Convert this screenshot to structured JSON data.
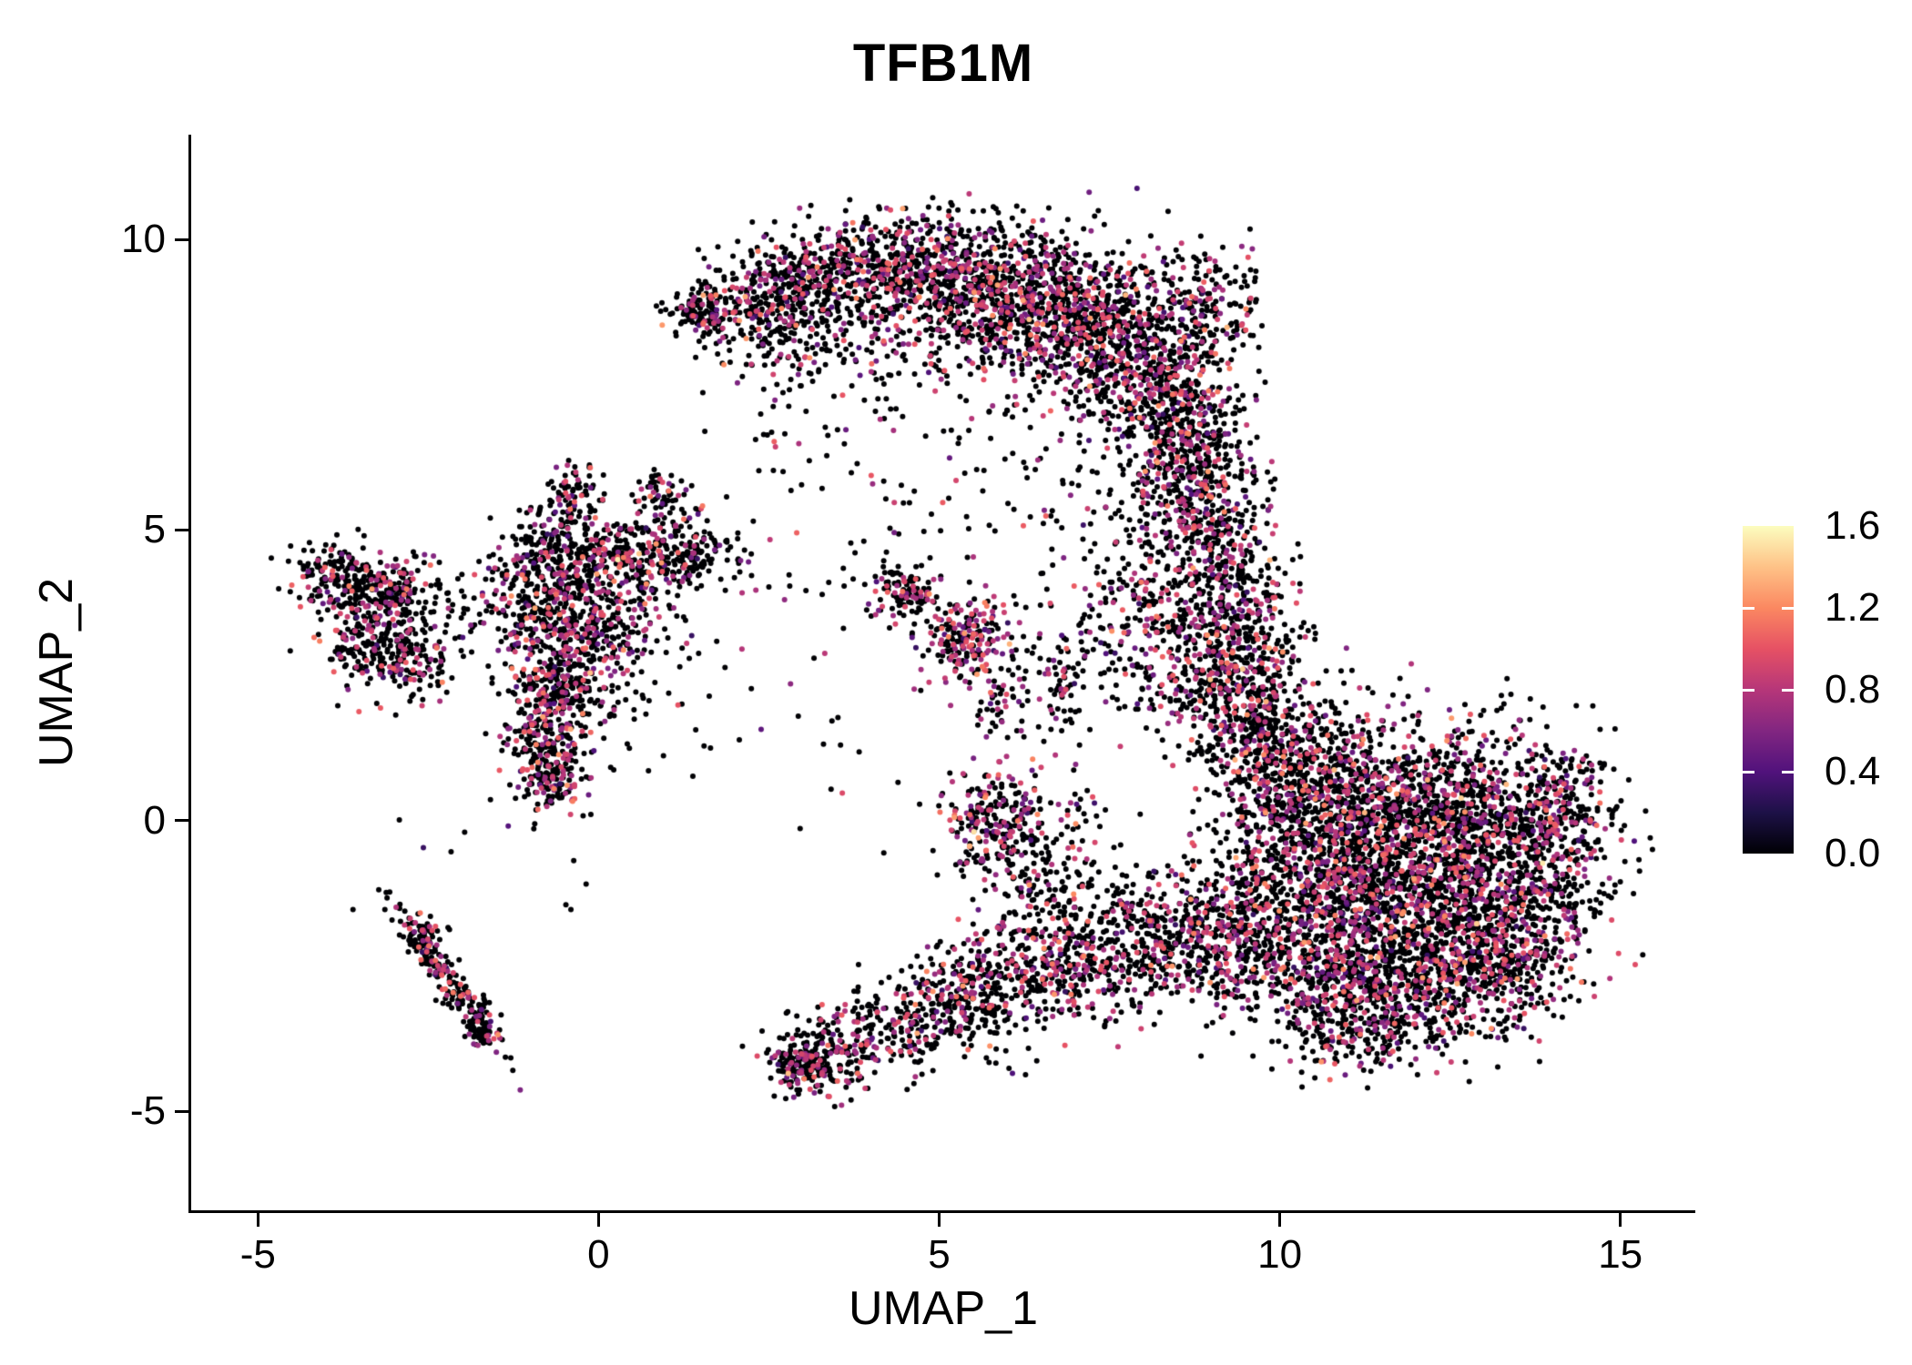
{
  "figure": {
    "background": "#ffffff"
  },
  "chart_data": {
    "type": "scatter",
    "title": "TFB1M",
    "xlabel": "UMAP_1",
    "ylabel": "UMAP_2",
    "xlim": [
      -5.98,
      16.1
    ],
    "ylim": [
      -6.7,
      11.8
    ],
    "grid": false,
    "xticks": [
      {
        "v": -5,
        "label": "-5"
      },
      {
        "v": 0,
        "label": "0"
      },
      {
        "v": 5,
        "label": "5"
      },
      {
        "v": 10,
        "label": "10"
      },
      {
        "v": 15,
        "label": "15"
      }
    ],
    "yticks": [
      {
        "v": -5,
        "label": "-5"
      },
      {
        "v": 0,
        "label": "0"
      },
      {
        "v": 5,
        "label": "5"
      },
      {
        "v": 10,
        "label": "10"
      }
    ],
    "legend": {
      "position": "right",
      "vmin": 0.0,
      "vmax": 1.6,
      "ticks": [
        {
          "v": 1.6,
          "label": "1.6"
        },
        {
          "v": 1.2,
          "label": "1.2"
        },
        {
          "v": 0.8,
          "label": "0.8"
        },
        {
          "v": 0.4,
          "label": "0.4"
        },
        {
          "v": 0.0,
          "label": "0.0"
        }
      ],
      "bar_tick_values": [
        0.4,
        0.8,
        1.2
      ]
    },
    "colormap": {
      "name": "magma",
      "stops": [
        [
          0.0,
          "#000004"
        ],
        [
          0.125,
          "#1D1147"
        ],
        [
          0.25,
          "#51127C"
        ],
        [
          0.375,
          "#822681"
        ],
        [
          0.5,
          "#B63679"
        ],
        [
          0.625,
          "#E65164"
        ],
        [
          0.75,
          "#FB8861"
        ],
        [
          0.875,
          "#FEC287"
        ],
        [
          1.0,
          "#FCFDBF"
        ]
      ]
    },
    "point_radius": 3.0,
    "seed": 7,
    "value_defaults": {
      "vm": 0.78,
      "vs": 0.22,
      "vfloor": 0.3
    },
    "clusters": [
      {
        "cx": 1.5,
        "cy": 8.75,
        "sx": 0.28,
        "sy": 0.22,
        "n": 110,
        "fp": 0.3
      },
      {
        "cx": 2.3,
        "cy": 9.0,
        "sx": 0.5,
        "sy": 0.35,
        "n": 200,
        "fp": 0.3
      },
      {
        "cx": 3.3,
        "cy": 9.4,
        "sx": 0.6,
        "sy": 0.45,
        "n": 300,
        "fp": 0.3
      },
      {
        "cx": 4.5,
        "cy": 9.5,
        "sx": 0.7,
        "sy": 0.5,
        "n": 420,
        "fp": 0.3
      },
      {
        "cx": 5.7,
        "cy": 9.2,
        "sx": 0.8,
        "sy": 0.55,
        "n": 550,
        "fp": 0.32
      },
      {
        "cx": 6.8,
        "cy": 8.7,
        "sx": 0.75,
        "sy": 0.65,
        "n": 600,
        "fp": 0.32
      },
      {
        "cx": 7.8,
        "cy": 8.0,
        "sx": 0.6,
        "sy": 0.7,
        "n": 520,
        "fp": 0.32
      },
      {
        "cx": 8.5,
        "cy": 7.0,
        "sx": 0.45,
        "sy": 0.7,
        "n": 350,
        "fp": 0.3
      },
      {
        "cx": 8.8,
        "cy": 5.9,
        "sx": 0.4,
        "sy": 0.6,
        "n": 220,
        "fp": 0.3
      },
      {
        "cx": 4.0,
        "cy": 8.2,
        "sx": 1.1,
        "sy": 0.6,
        "n": 130,
        "fp": 0.25
      },
      {
        "cx": 2.9,
        "cy": 8.3,
        "sx": 0.5,
        "sy": 0.45,
        "n": 90,
        "fp": 0.25
      },
      {
        "cx": 8.9,
        "cy": 8.9,
        "sx": 0.45,
        "sy": 0.5,
        "n": 180,
        "fp": 0.3
      },
      {
        "cx": 9.0,
        "cy": 4.9,
        "sx": 0.45,
        "sy": 0.65,
        "n": 230,
        "fp": 0.3
      },
      {
        "cx": 9.3,
        "cy": 3.6,
        "sx": 0.5,
        "sy": 0.7,
        "n": 300,
        "fp": 0.32
      },
      {
        "cx": 9.2,
        "cy": 2.4,
        "sx": 0.6,
        "sy": 0.7,
        "n": 350,
        "fp": 0.32
      },
      {
        "cx": 8.1,
        "cy": 2.9,
        "sx": 0.45,
        "sy": 0.6,
        "n": 140,
        "fp": 0.3
      },
      {
        "cx": 8.0,
        "cy": 4.6,
        "sx": 0.5,
        "sy": 0.7,
        "n": 70,
        "fp": 0.25
      },
      {
        "cx": 10.3,
        "cy": 0.6,
        "sx": 0.7,
        "sy": 0.7,
        "n": 500,
        "fp": 0.28
      },
      {
        "cx": 11.6,
        "cy": 0.4,
        "sx": 0.9,
        "sy": 0.65,
        "n": 600,
        "fp": 0.28
      },
      {
        "cx": 13.1,
        "cy": 0.1,
        "sx": 0.8,
        "sy": 0.6,
        "n": 500,
        "fp": 0.28
      },
      {
        "cx": 14.2,
        "cy": 0.2,
        "sx": 0.35,
        "sy": 0.5,
        "n": 160,
        "fp": 0.25
      },
      {
        "cx": 10.6,
        "cy": -0.9,
        "sx": 0.8,
        "sy": 0.7,
        "n": 600,
        "fp": 0.3
      },
      {
        "cx": 12.1,
        "cy": -1.2,
        "sx": 0.9,
        "sy": 0.7,
        "n": 650,
        "fp": 0.28
      },
      {
        "cx": 13.5,
        "cy": -1.3,
        "sx": 0.7,
        "sy": 0.65,
        "n": 450,
        "fp": 0.28
      },
      {
        "cx": 10.7,
        "cy": -2.4,
        "sx": 0.8,
        "sy": 0.65,
        "n": 550,
        "fp": 0.3
      },
      {
        "cx": 12.1,
        "cy": -2.7,
        "sx": 0.8,
        "sy": 0.6,
        "n": 500,
        "fp": 0.28
      },
      {
        "cx": 13.3,
        "cy": -2.5,
        "sx": 0.5,
        "sy": 0.5,
        "n": 250,
        "fp": 0.28
      },
      {
        "cx": 11.2,
        "cy": -3.5,
        "sx": 0.7,
        "sy": 0.4,
        "n": 250,
        "fp": 0.28
      },
      {
        "cx": 9.7,
        "cy": 1.6,
        "sx": 0.45,
        "sy": 0.55,
        "n": 220,
        "fp": 0.3
      },
      {
        "cx": 11.5,
        "cy": 1.6,
        "sx": 1.2,
        "sy": 0.5,
        "n": 120,
        "fp": 0.22
      },
      {
        "cx": 6.2,
        "cy": -2.7,
        "sx": 0.6,
        "sy": 0.5,
        "n": 240,
        "fp": 0.32
      },
      {
        "cx": 7.2,
        "cy": -2.4,
        "sx": 0.6,
        "sy": 0.5,
        "n": 240,
        "fp": 0.32
      },
      {
        "cx": 8.3,
        "cy": -2.1,
        "sx": 0.55,
        "sy": 0.55,
        "n": 260,
        "fp": 0.3
      },
      {
        "cx": 9.3,
        "cy": -2.0,
        "sx": 0.5,
        "sy": 0.6,
        "n": 280,
        "fp": 0.3
      },
      {
        "cx": 7.6,
        "cy": -1.3,
        "sx": 0.9,
        "sy": 0.5,
        "n": 90,
        "fp": 0.25
      },
      {
        "cx": 5.3,
        "cy": -3.1,
        "sx": 0.5,
        "sy": 0.4,
        "n": 200,
        "fp": 0.3
      },
      {
        "cx": 4.3,
        "cy": -3.6,
        "sx": 0.55,
        "sy": 0.35,
        "n": 200,
        "fp": 0.3
      },
      {
        "cx": 3.3,
        "cy": -4.1,
        "sx": 0.4,
        "sy": 0.3,
        "n": 200,
        "fp": 0.28
      },
      {
        "cx": 2.9,
        "cy": -4.25,
        "sx": 0.2,
        "sy": 0.22,
        "n": 80,
        "fp": 0.25
      },
      {
        "cx": 5.85,
        "cy": -0.1,
        "sx": 0.4,
        "sy": 0.5,
        "n": 260,
        "fp": 0.4
      },
      {
        "cx": 6.4,
        "cy": -1.2,
        "sx": 0.3,
        "sy": 0.5,
        "n": 70,
        "fp": 0.3
      },
      {
        "cx": 6.9,
        "cy": -0.3,
        "sx": 0.3,
        "sy": 0.8,
        "n": 60,
        "fp": 0.25
      },
      {
        "cx": 4.5,
        "cy": 3.9,
        "sx": 0.3,
        "sy": 0.25,
        "n": 110,
        "fp": 0.3
      },
      {
        "cx": 5.35,
        "cy": 3.1,
        "sx": 0.3,
        "sy": 0.4,
        "n": 200,
        "fp": 0.45,
        "rot": -30
      },
      {
        "cx": 5.9,
        "cy": 2.2,
        "sx": 0.25,
        "sy": 0.4,
        "n": 60,
        "fp": 0.3
      },
      {
        "cx": 6.8,
        "cy": 2.3,
        "sx": 0.18,
        "sy": 0.5,
        "n": 70,
        "fp": 0.28
      },
      {
        "cx": 7.3,
        "cy": 3.9,
        "sx": 0.6,
        "sy": 0.6,
        "n": 60,
        "fp": 0.22
      },
      {
        "cx": -0.35,
        "cy": 4.6,
        "sx": 0.55,
        "sy": 0.45,
        "n": 320,
        "fp": 0.25
      },
      {
        "cx": 0.7,
        "cy": 4.5,
        "sx": 0.5,
        "sy": 0.35,
        "n": 220,
        "fp": 0.25
      },
      {
        "cx": 1.4,
        "cy": 4.6,
        "sx": 0.35,
        "sy": 0.3,
        "n": 90,
        "fp": 0.22
      },
      {
        "cx": -0.35,
        "cy": 5.6,
        "sx": 0.16,
        "sy": 0.35,
        "n": 70,
        "fp": 0.25
      },
      {
        "cx": 0.95,
        "cy": 5.55,
        "sx": 0.22,
        "sy": 0.28,
        "n": 60,
        "fp": 0.22
      },
      {
        "cx": -0.9,
        "cy": 3.7,
        "sx": 0.5,
        "sy": 0.45,
        "n": 260,
        "fp": 0.28
      },
      {
        "cx": 0.1,
        "cy": 3.4,
        "sx": 0.5,
        "sy": 0.4,
        "n": 200,
        "fp": 0.3
      },
      {
        "cx": -0.55,
        "cy": 2.5,
        "sx": 0.4,
        "sy": 0.45,
        "n": 240,
        "fp": 0.35
      },
      {
        "cx": -0.75,
        "cy": 1.4,
        "sx": 0.3,
        "sy": 0.55,
        "n": 240,
        "fp": 0.35
      },
      {
        "cx": -0.7,
        "cy": 0.7,
        "sx": 0.25,
        "sy": 0.3,
        "n": 100,
        "fp": 0.3
      },
      {
        "cx": 0.3,
        "cy": 2.2,
        "sx": 0.8,
        "sy": 0.8,
        "n": 60,
        "fp": 0.2
      },
      {
        "cx": -3.85,
        "cy": 4.2,
        "sx": 0.3,
        "sy": 0.3,
        "n": 150,
        "fp": 0.25
      },
      {
        "cx": -3.1,
        "cy": 3.95,
        "sx": 0.4,
        "sy": 0.3,
        "n": 180,
        "fp": 0.25
      },
      {
        "cx": -3.35,
        "cy": 3.1,
        "sx": 0.35,
        "sy": 0.4,
        "n": 200,
        "fp": 0.25
      },
      {
        "cx": -2.7,
        "cy": 2.75,
        "sx": 0.3,
        "sy": 0.3,
        "n": 110,
        "fp": 0.25
      },
      {
        "cx": -2.2,
        "cy": 3.6,
        "sx": 0.5,
        "sy": 0.5,
        "n": 40,
        "fp": 0.2
      },
      {
        "cx": -2.25,
        "cy": -2.7,
        "sx": 0.75,
        "sy": 0.12,
        "n": 190,
        "fp": 0.25,
        "rot": -59
      },
      {
        "cx": -2.55,
        "cy": -2.0,
        "sx": 0.15,
        "sy": 0.2,
        "n": 60,
        "fp": 0.25
      },
      {
        "cx": -1.75,
        "cy": -3.55,
        "sx": 0.12,
        "sy": 0.25,
        "n": 60,
        "fp": 0.25
      },
      {
        "cx": 3.0,
        "cy": 6.8,
        "sx": 1.0,
        "sy": 0.8,
        "n": 50,
        "fp": 0.2
      },
      {
        "cx": 5.5,
        "cy": 6.3,
        "sx": 1.3,
        "sy": 0.9,
        "n": 60,
        "fp": 0.2
      },
      {
        "cx": 7.6,
        "cy": 5.6,
        "sx": 0.7,
        "sy": 0.6,
        "n": 50,
        "fp": 0.2
      },
      {
        "cx": 3.7,
        "cy": 4.7,
        "sx": 1.0,
        "sy": 0.6,
        "n": 40,
        "fp": 0.2
      },
      {
        "cx": 2.0,
        "cy": 3.0,
        "sx": 1.2,
        "sy": 1.0,
        "n": 25,
        "fp": 0.2
      },
      {
        "cx": 4.6,
        "cy": 0.5,
        "sx": 1.5,
        "sy": 1.5,
        "n": 20,
        "fp": 0.2
      },
      {
        "cx": -1.5,
        "cy": -0.5,
        "sx": 1.0,
        "sy": 0.8,
        "n": 12,
        "fp": 0.2
      }
    ]
  }
}
